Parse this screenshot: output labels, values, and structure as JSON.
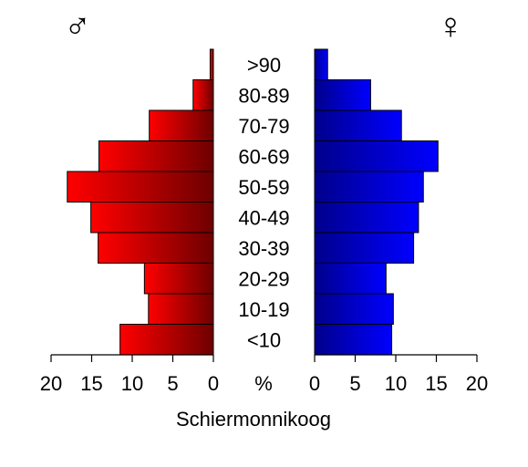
{
  "chart_data": {
    "type": "bar",
    "subtype": "population-pyramid",
    "title": "Schiermonnikoog",
    "center_unit": "%",
    "male_symbol": "♂",
    "female_symbol": "♀",
    "categories": [
      "<10",
      "10-19",
      "20-29",
      "30-39",
      "40-49",
      "50-59",
      "60-69",
      "70-79",
      "80-89",
      ">90"
    ],
    "series": [
      {
        "sex": "male",
        "values": [
          11.5,
          8.0,
          8.5,
          14.2,
          15.1,
          18.0,
          14.1,
          7.9,
          2.5,
          0.4
        ],
        "color_start": "#ff0000",
        "color_end": "#6e0000"
      },
      {
        "sex": "female",
        "values": [
          9.5,
          9.7,
          8.8,
          12.2,
          12.8,
          13.4,
          15.2,
          10.7,
          6.9,
          1.6
        ],
        "color_start": "#00008b",
        "color_end": "#0000ff"
      }
    ],
    "xlim": [
      0,
      20
    ],
    "ticks": [
      "0",
      "5",
      "10",
      "15",
      "20"
    ],
    "grid": false
  }
}
